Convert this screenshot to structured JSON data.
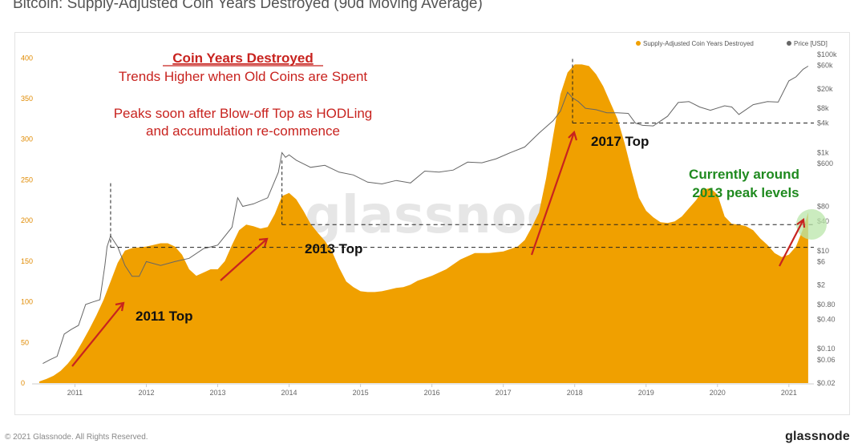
{
  "page": {
    "title": "Bitcoin: Supply-Adjusted Coin Years Destroyed (90d Moving Average)",
    "copyright": "© 2021 Glassnode. All Rights Reserved.",
    "brand": "glassnode",
    "watermark": "glassnode"
  },
  "colors": {
    "area": "#f0a000",
    "price": "#666666",
    "annotation_red": "#c8231f",
    "annotation_green": "#1f8a1f",
    "green_glow": "#b9e6a9"
  },
  "chart_data": {
    "type": "area",
    "legend": [
      {
        "label": "Supply-Adjusted Coin Years Destroyed",
        "color": "#f0a000"
      },
      {
        "label": "Price [USD]",
        "color": "#666666"
      }
    ],
    "legend_position": "top-right",
    "x_ticks": [
      "2011",
      "2012",
      "2013",
      "2014",
      "2015",
      "2016",
      "2017",
      "2018",
      "2019",
      "2020",
      "2021"
    ],
    "y_left_ticks": [
      0,
      50,
      100,
      150,
      200,
      250,
      300,
      350,
      400
    ],
    "y_left_range": [
      0,
      420
    ],
    "y_right_ticks": [
      "$0.02",
      "$0.06",
      "$0.10",
      "$0.40",
      "$0.80",
      "$2",
      "$6",
      "$10",
      "$40",
      "$80",
      "$600",
      "$1k",
      "$4k",
      "$8k",
      "$20k",
      "$60k",
      "$100k"
    ],
    "y_right_scale": "log",
    "grid": false,
    "cyd_series": {
      "name": "Supply-Adjusted Coin Years Destroyed",
      "x": [
        2010.5,
        2010.6,
        2010.7,
        2010.8,
        2010.9,
        2011.0,
        2011.1,
        2011.2,
        2011.3,
        2011.4,
        2011.5,
        2011.6,
        2011.7,
        2011.8,
        2011.9,
        2012.0,
        2012.1,
        2012.2,
        2012.3,
        2012.4,
        2012.5,
        2012.6,
        2012.7,
        2012.8,
        2012.9,
        2013.0,
        2013.1,
        2013.2,
        2013.3,
        2013.4,
        2013.5,
        2013.6,
        2013.7,
        2013.8,
        2013.9,
        2014.0,
        2014.1,
        2014.2,
        2014.3,
        2014.4,
        2014.5,
        2014.6,
        2014.7,
        2014.8,
        2014.9,
        2015.0,
        2015.1,
        2015.2,
        2015.3,
        2015.4,
        2015.5,
        2015.6,
        2015.7,
        2015.8,
        2015.9,
        2016.0,
        2016.2,
        2016.4,
        2016.6,
        2016.8,
        2017.0,
        2017.2,
        2017.3,
        2017.4,
        2017.5,
        2017.6,
        2017.7,
        2017.8,
        2017.9,
        2018.0,
        2018.1,
        2018.2,
        2018.3,
        2018.4,
        2018.5,
        2018.6,
        2018.7,
        2018.8,
        2018.9,
        2019.0,
        2019.1,
        2019.2,
        2019.3,
        2019.4,
        2019.5,
        2019.6,
        2019.7,
        2019.8,
        2019.9,
        2020.0,
        2020.1,
        2020.2,
        2020.3,
        2020.4,
        2020.5,
        2020.6,
        2020.7,
        2020.8,
        2020.9,
        2021.0,
        2021.1,
        2021.2,
        2021.27
      ],
      "y": [
        2,
        5,
        9,
        15,
        24,
        35,
        50,
        66,
        83,
        102,
        125,
        148,
        163,
        166,
        167,
        168,
        170,
        172,
        172,
        168,
        158,
        140,
        132,
        136,
        140,
        140,
        150,
        170,
        188,
        195,
        193,
        190,
        192,
        208,
        230,
        234,
        226,
        212,
        196,
        185,
        175,
        162,
        142,
        125,
        118,
        113,
        112,
        112,
        113,
        115,
        117,
        118,
        121,
        126,
        129,
        132,
        140,
        152,
        160,
        160,
        162,
        168,
        176,
        192,
        210,
        252,
        305,
        355,
        382,
        392,
        392,
        390,
        380,
        365,
        345,
        325,
        295,
        260,
        228,
        212,
        204,
        198,
        197,
        199,
        205,
        215,
        225,
        238,
        240,
        232,
        205,
        196,
        195,
        193,
        188,
        178,
        170,
        160,
        155,
        158,
        168,
        190,
        210
      ]
    },
    "price_series": {
      "name": "Price [USD]",
      "x": [
        2010.55,
        2010.65,
        2010.75,
        2010.85,
        2010.95,
        2011.05,
        2011.15,
        2011.25,
        2011.35,
        2011.42,
        2011.45,
        2011.5,
        2011.6,
        2011.7,
        2011.8,
        2011.9,
        2012.0,
        2012.2,
        2012.4,
        2012.6,
        2012.8,
        2013.0,
        2013.2,
        2013.28,
        2013.35,
        2013.5,
        2013.7,
        2013.85,
        2013.9,
        2013.95,
        2014.0,
        2014.1,
        2014.3,
        2014.5,
        2014.7,
        2014.9,
        2015.1,
        2015.3,
        2015.5,
        2015.7,
        2015.9,
        2016.1,
        2016.3,
        2016.5,
        2016.7,
        2016.9,
        2017.1,
        2017.3,
        2017.5,
        2017.7,
        2017.8,
        2017.9,
        2017.97,
        2018.05,
        2018.15,
        2018.3,
        2018.45,
        2018.6,
        2018.75,
        2018.85,
        2018.95,
        2019.1,
        2019.3,
        2019.45,
        2019.6,
        2019.75,
        2019.9,
        2020.1,
        2020.2,
        2020.3,
        2020.5,
        2020.7,
        2020.85,
        2021.0,
        2021.1,
        2021.2,
        2021.27
      ],
      "y": [
        0.05,
        0.06,
        0.07,
        0.2,
        0.25,
        0.3,
        0.8,
        0.9,
        1.0,
        5.0,
        12.0,
        20.0,
        12.0,
        5.0,
        3.0,
        3.0,
        6.0,
        5.0,
        6.0,
        7.0,
        11.0,
        13.0,
        30.0,
        120.0,
        80.0,
        90.0,
        120.0,
        400.0,
        1000.0,
        800.0,
        900.0,
        700.0,
        500.0,
        550.0,
        400.0,
        350.0,
        250.0,
        230.0,
        270.0,
        240.0,
        420.0,
        400.0,
        440.0,
        640.0,
        620.0,
        750.0,
        1000.0,
        1300.0,
        2500.0,
        4500.0,
        7000.0,
        17000.0,
        13000.0,
        11000.0,
        8000.0,
        7500.0,
        6500.0,
        6500.0,
        6300.0,
        4000.0,
        3600.0,
        3500.0,
        5500.0,
        10500.0,
        11000.0,
        8500.0,
        7300.0,
        9000.0,
        8500.0,
        6000.0,
        9500.0,
        11000.0,
        10700.0,
        29000.0,
        35000.0,
        50000.0,
        58000.0
      ]
    },
    "reference_lines": [
      {
        "label": "2011 Top",
        "y": 167,
        "x_start": 2011.5
      },
      {
        "label": "2013 Top",
        "y": 195,
        "x_start": 2013.9
      },
      {
        "label": "2017 Top",
        "price": 4000,
        "x_start": 2017.97
      }
    ],
    "annotations": {
      "heading": "Coin Years Destroyed",
      "line1": "Trends Higher when Old Coins are Spent",
      "line2": "Peaks soon after Blow-off Top as HODLing",
      "line3": "and accumulation re-commence",
      "green_line1": "Currently around",
      "green_line2": "2013 peak levels",
      "top_2011": "2011 Top",
      "top_2013": "2013 Top",
      "top_2017": "2017 Top"
    }
  }
}
